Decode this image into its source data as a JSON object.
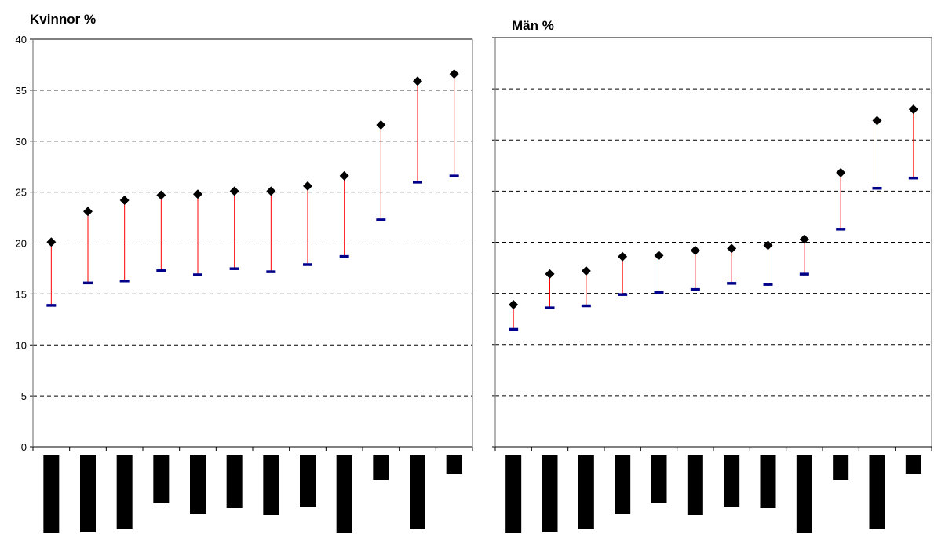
{
  "chart_data": [
    {
      "type": "scatter",
      "title": "Kvinnor %",
      "ylim": [
        0,
        40
      ],
      "yticks": [
        0,
        5,
        10,
        15,
        20,
        25,
        30,
        35,
        40
      ],
      "grid": true,
      "categories": [
        "",
        "",
        "",
        "",
        "",
        "",
        "",
        "",
        "",
        "",
        "",
        ""
      ],
      "series": [
        {
          "marker": "diamond",
          "color": "#000000",
          "values": [
            20.1,
            23.1,
            24.2,
            24.7,
            24.8,
            25.1,
            25.1,
            25.6,
            26.6,
            31.6,
            35.9,
            36.6
          ]
        },
        {
          "marker": "dash",
          "color": "#00008B",
          "values": [
            13.9,
            16.1,
            16.3,
            17.3,
            16.9,
            17.5,
            17.2,
            17.9,
            18.7,
            22.3,
            26.0,
            26.6
          ]
        }
      ],
      "connector_color": "#FF0000"
    },
    {
      "type": "scatter",
      "title": "Män %",
      "ylim": [
        0,
        40
      ],
      "yticks": [
        0,
        5,
        10,
        15,
        20,
        25,
        30,
        35,
        40
      ],
      "grid": true,
      "categories": [
        "",
        "",
        "",
        "",
        "",
        "",
        "",
        "",
        "",
        "",
        "",
        ""
      ],
      "series": [
        {
          "marker": "diamond",
          "color": "#000000",
          "values": [
            13.9,
            16.9,
            17.2,
            18.6,
            18.7,
            19.2,
            19.4,
            19.7,
            20.3,
            26.8,
            31.9,
            33.0
          ]
        },
        {
          "marker": "dash",
          "color": "#00008B",
          "values": [
            11.5,
            13.6,
            13.8,
            14.9,
            15.1,
            15.4,
            16.0,
            15.9,
            16.9,
            21.3,
            25.3,
            26.3
          ]
        }
      ],
      "connector_color": "#FF0000"
    }
  ]
}
